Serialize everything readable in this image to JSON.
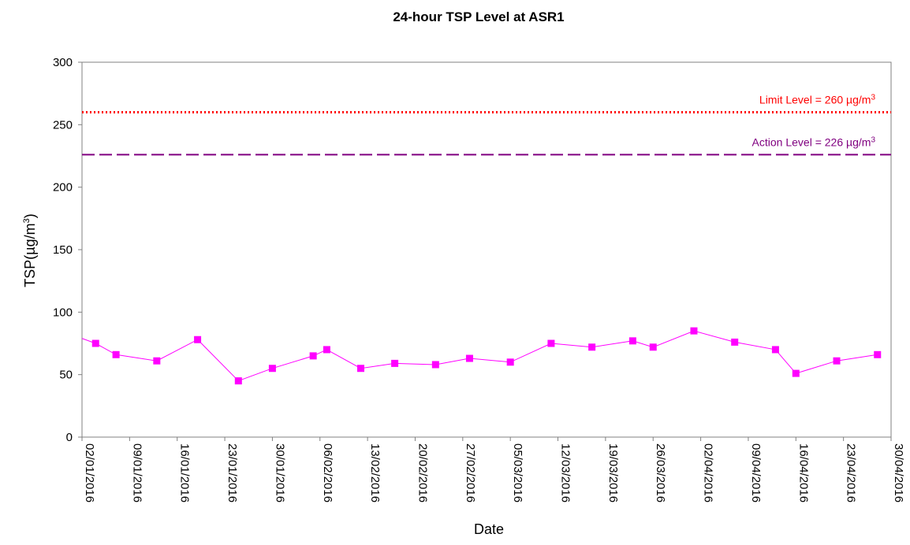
{
  "chart_data": {
    "type": "line",
    "title": "24-hour TSP Level at ASR1",
    "xlabel": "Date",
    "ylabel": "TSP(µg/m",
    "ylabel_sup": "3",
    "ylabel_suffix": ")",
    "ylim": [
      0,
      300
    ],
    "y_ticks": [
      "0",
      "50",
      "100",
      "150",
      "200",
      "250",
      "300"
    ],
    "x_ticks": [
      "02/01/2016",
      "09/01/2016",
      "16/01/2016",
      "23/01/2016",
      "30/01/2016",
      "06/02/2016",
      "13/02/2016",
      "20/02/2016",
      "27/02/2016",
      "05/03/2016",
      "12/03/2016",
      "19/03/2016",
      "26/03/2016",
      "02/04/2016",
      "09/04/2016",
      "16/04/2016",
      "23/04/2016",
      "30/04/2016"
    ],
    "xlim": [
      "2016-01-02",
      "2016-04-30"
    ],
    "grid": false,
    "series": [
      {
        "color": "#ff00ff",
        "marker": "square",
        "x": [
          "2016-01-01",
          "2016-01-04",
          "2016-01-07",
          "2016-01-13",
          "2016-01-19",
          "2016-01-25",
          "2016-01-30",
          "2016-02-05",
          "2016-02-07",
          "2016-02-12",
          "2016-02-17",
          "2016-02-23",
          "2016-02-28",
          "2016-03-05",
          "2016-03-11",
          "2016-03-17",
          "2016-03-23",
          "2016-03-26",
          "2016-04-01",
          "2016-04-07",
          "2016-04-13",
          "2016-04-16",
          "2016-04-22",
          "2016-04-28"
        ],
        "values": [
          81,
          75,
          66,
          61,
          78,
          45,
          55,
          65,
          70,
          55,
          59,
          58,
          63,
          60,
          75,
          72,
          77,
          72,
          85,
          76,
          70,
          51,
          61,
          66
        ],
        "markers": [
          false,
          true,
          true,
          true,
          true,
          true,
          true,
          true,
          true,
          true,
          true,
          true,
          true,
          true,
          true,
          true,
          true,
          true,
          true,
          true,
          true,
          true,
          true,
          true
        ]
      }
    ],
    "reference_lines": [
      {
        "label": "Limit Level = 260 µg/m",
        "sup": "3",
        "value": 260,
        "color": "#ff0000",
        "style": "dotted"
      },
      {
        "label": "Action Level = 226 µg/m",
        "sup": "3",
        "value": 226,
        "color": "#800080",
        "style": "dashed"
      }
    ]
  }
}
